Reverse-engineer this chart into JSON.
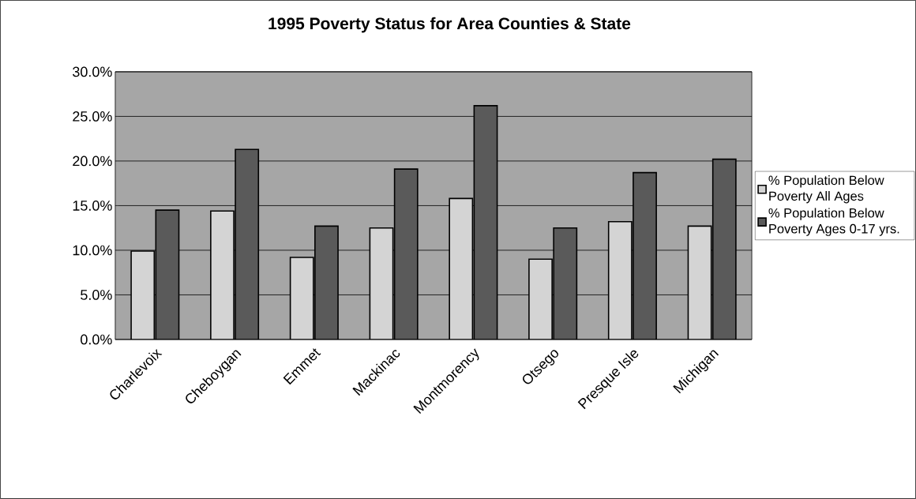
{
  "chart_data": {
    "type": "bar",
    "title": "1995 Poverty Status for Area Counties & State",
    "categories": [
      "Charlevoix",
      "Cheboygan",
      "Emmet",
      "Mackinac",
      "Montmorency",
      "Otsego",
      "Presque Isle",
      "Michigan"
    ],
    "series": [
      {
        "name": "% Population Below Poverty All Ages",
        "color": "#d4d4d4",
        "values": [
          9.9,
          14.4,
          9.2,
          12.5,
          15.8,
          9.0,
          13.2,
          12.7
        ]
      },
      {
        "name": "% Population Below Poverty Ages 0-17 yrs.",
        "color": "#5a5a5a",
        "values": [
          14.5,
          21.3,
          12.7,
          19.1,
          26.2,
          12.5,
          18.7,
          20.2
        ]
      }
    ],
    "ylim": [
      0,
      30
    ],
    "yticks": [
      {
        "value": 0,
        "label": "0.0%"
      },
      {
        "value": 5,
        "label": "5.0%"
      },
      {
        "value": 10,
        "label": "10.0%"
      },
      {
        "value": 15,
        "label": "15.0%"
      },
      {
        "value": 20,
        "label": "20.0%"
      },
      {
        "value": 25,
        "label": "25.0%"
      },
      {
        "value": 30,
        "label": "30.0%"
      }
    ],
    "grid": "y",
    "legend": "right"
  }
}
